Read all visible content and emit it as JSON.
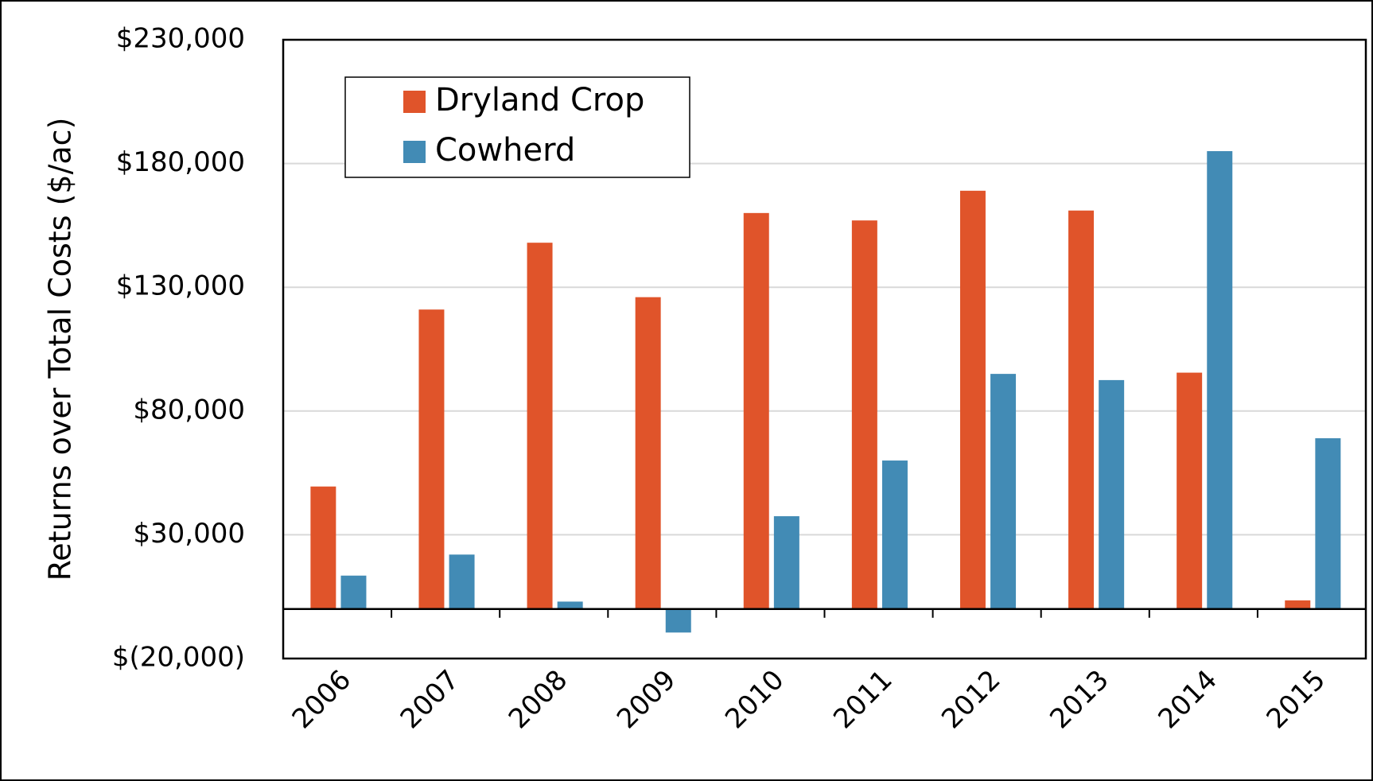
{
  "chart_data": {
    "type": "bar",
    "y_axis_label": "Returns over Total Costs ($/ac)",
    "categories": [
      "2006",
      "2007",
      "2008",
      "2009",
      "2010",
      "2011",
      "2012",
      "2013",
      "2014",
      "2015"
    ],
    "series": [
      {
        "name": "Dryland Crop",
        "color": "#e0542a",
        "values": [
          49500,
          121000,
          148000,
          126000,
          160000,
          157000,
          169000,
          161000,
          95500,
          3500
        ]
      },
      {
        "name": "Cowherd",
        "color": "#428bb5",
        "values": [
          13500,
          22000,
          3000,
          -9500,
          37500,
          60000,
          95000,
          92500,
          185000,
          69000
        ]
      }
    ],
    "ylim": [
      -20000,
      230000
    ],
    "yticks": [
      {
        "value": -20000,
        "label": "$(20,000)"
      },
      {
        "value": 30000,
        "label": "$30,000"
      },
      {
        "value": 80000,
        "label": "$80,000"
      },
      {
        "value": 130000,
        "label": "$130,000"
      },
      {
        "value": 180000,
        "label": "$180,000"
      },
      {
        "value": 230000,
        "label": "$230,000"
      }
    ],
    "grid": true,
    "legend": "upper left"
  }
}
